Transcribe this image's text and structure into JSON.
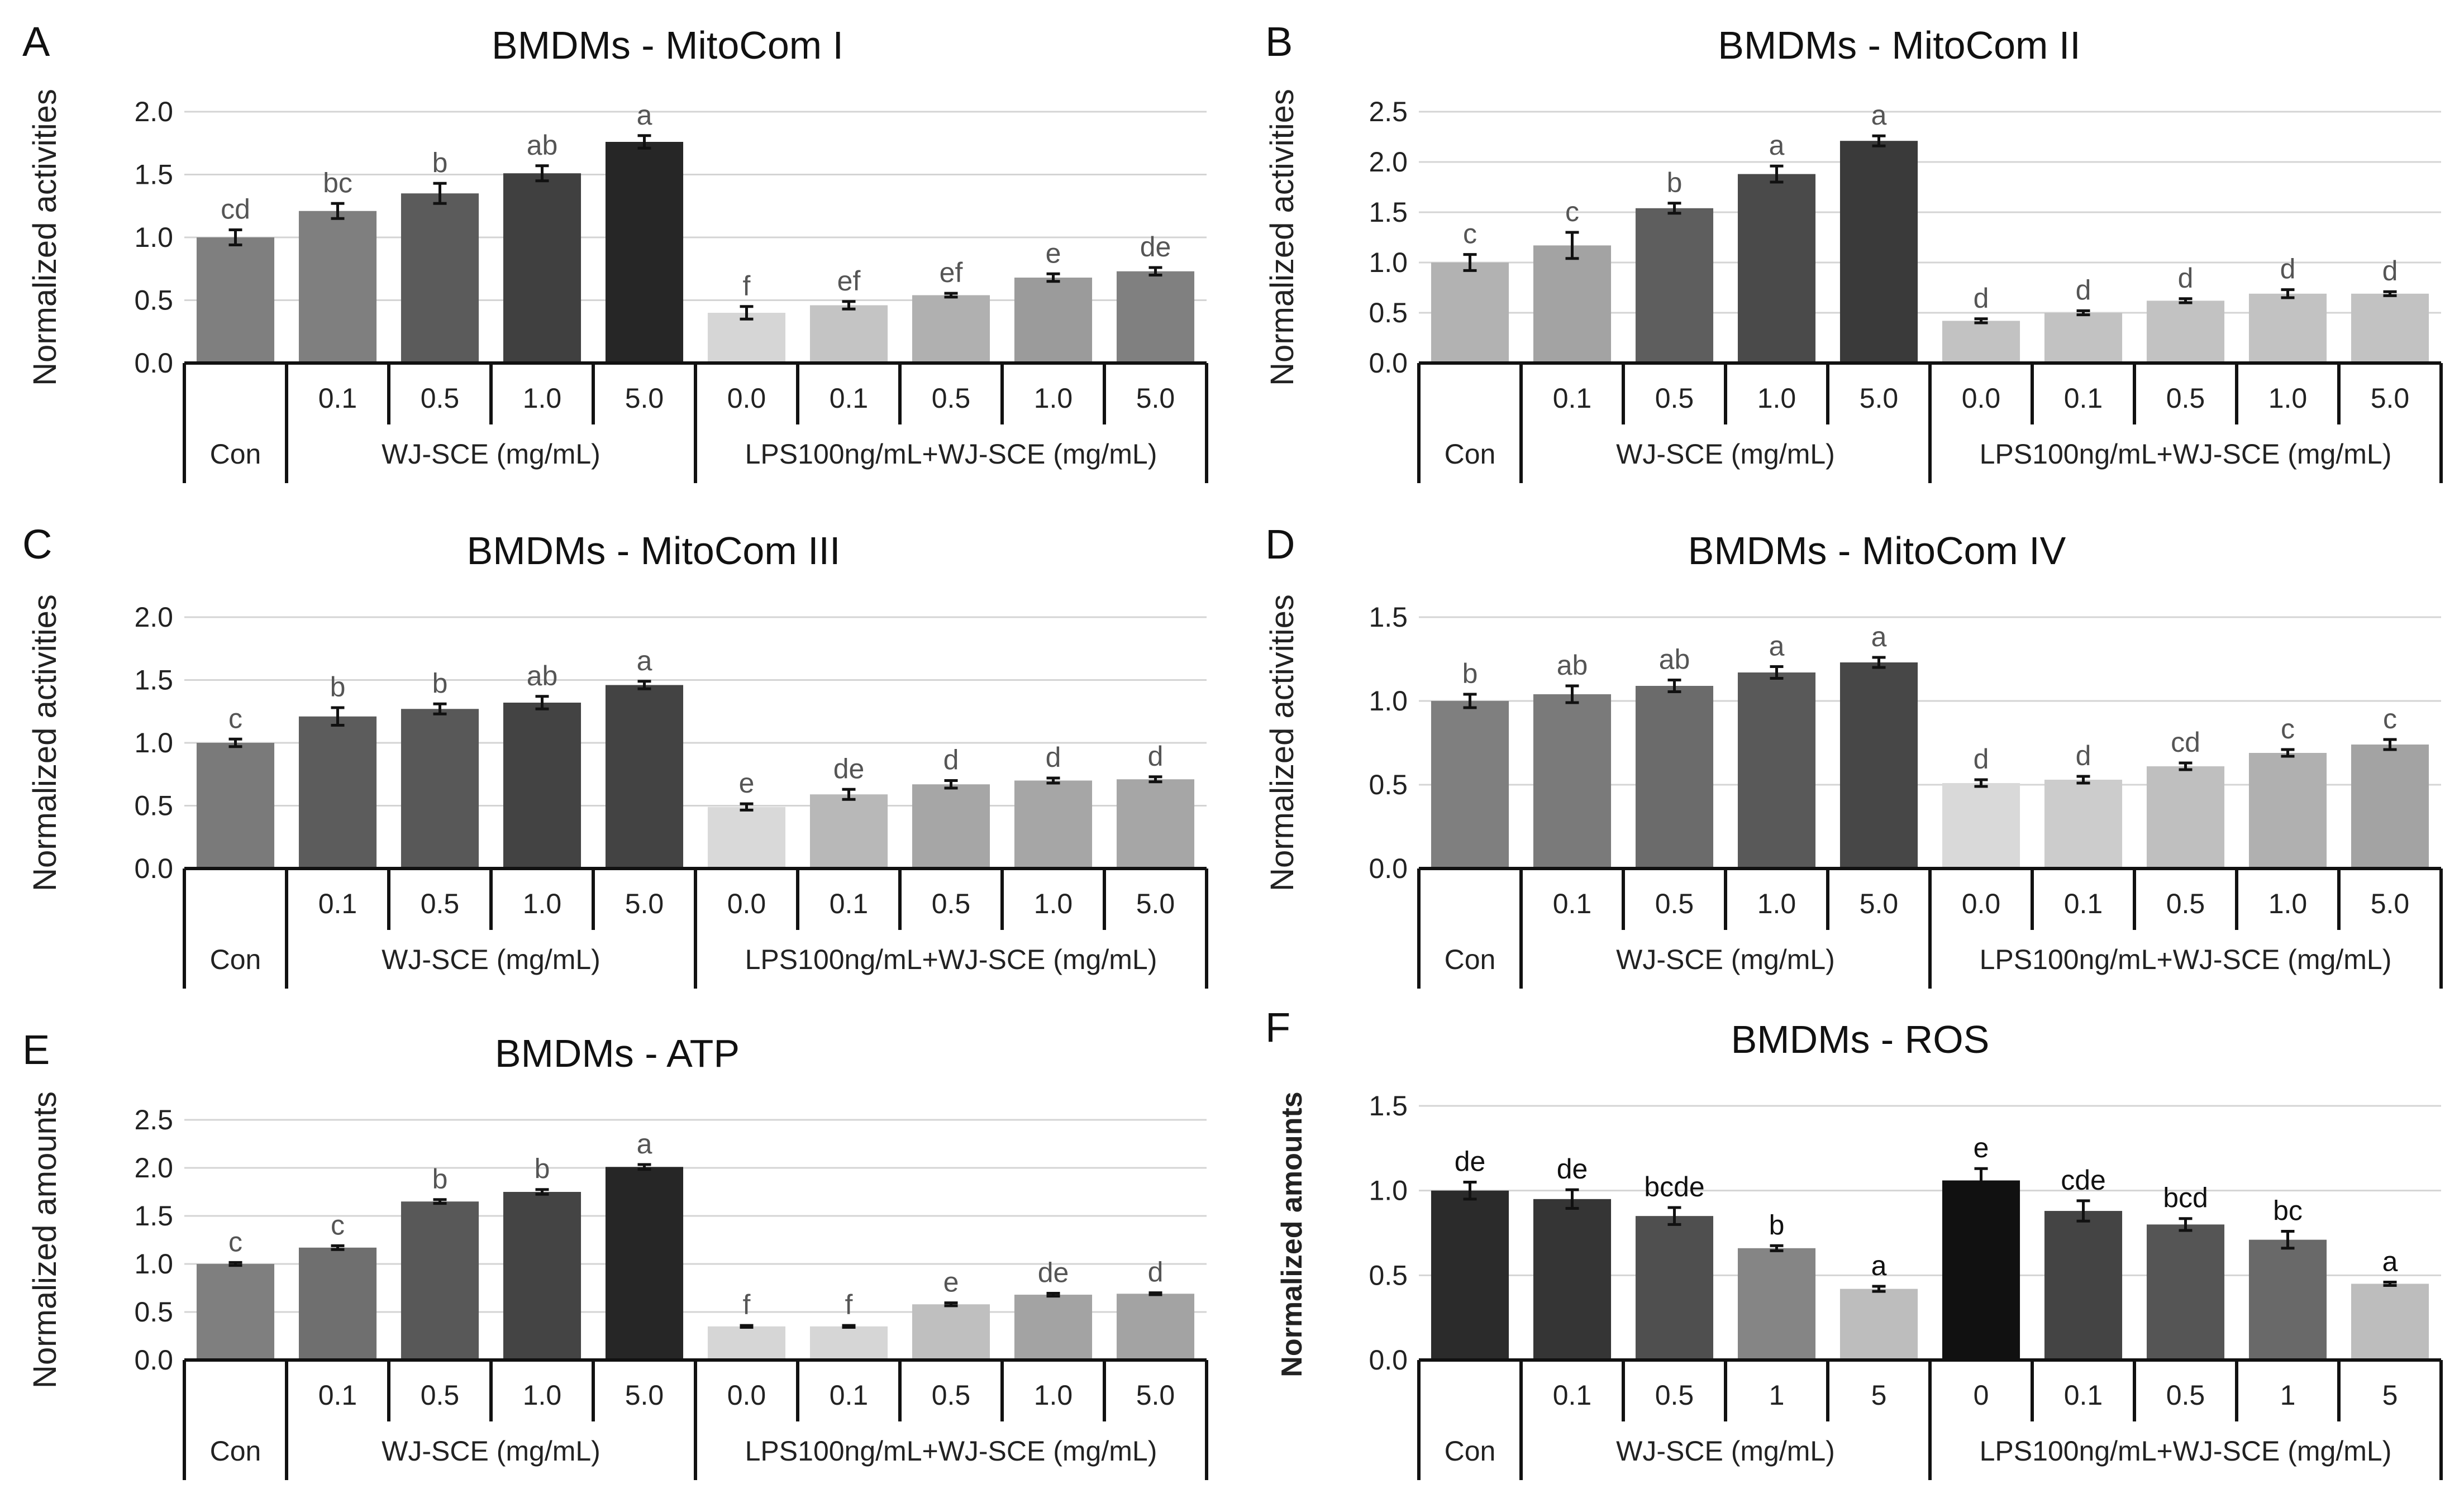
{
  "chart_data": [
    {
      "type": "bar",
      "panel": "A",
      "title": "BMDMs - MitoCom I",
      "ylabel": "Normalized activities",
      "xlabel": "",
      "ylim": [
        0,
        2.0
      ],
      "yticks": [
        "0.0",
        "0.5",
        "1.0",
        "1.5",
        "2.0"
      ],
      "categories": [
        "",
        "0.1",
        "0.5",
        "1.0",
        "5.0",
        "0.0",
        "0.1",
        "0.5",
        "1.0",
        "5.0"
      ],
      "groups": [
        "Con",
        "WJ-SCE (mg/mL)",
        "LPS100ng/mL+WJ-SCE (mg/mL)"
      ],
      "values": [
        1.0,
        1.21,
        1.35,
        1.51,
        1.76,
        0.4,
        0.46,
        0.54,
        0.68,
        0.73
      ],
      "errors": [
        0.06,
        0.06,
        0.08,
        0.06,
        0.05,
        0.05,
        0.03,
        0.015,
        0.03,
        0.03
      ],
      "sig_labels": [
        "cd",
        "bc",
        "b",
        "ab",
        "a",
        "f",
        "ef",
        "ef",
        "e",
        "de"
      ],
      "colors": [
        "#7f7f7f",
        "#7f7f7f",
        "#5b5b5b",
        "#404040",
        "#262626",
        "#d6d6d6",
        "#c4c4c4",
        "#b0b0b0",
        "#9b9b9b",
        "#808080"
      ]
    },
    {
      "type": "bar",
      "panel": "B",
      "title": "BMDMs - MitoCom II",
      "ylabel": "Normalized activities",
      "xlabel": "",
      "ylim": [
        0,
        2.5
      ],
      "yticks": [
        "0.0",
        "0.5",
        "1.0",
        "1.5",
        "2.0",
        "2.5"
      ],
      "categories": [
        "",
        "0.1",
        "0.5",
        "1.0",
        "5.0",
        "0.0",
        "0.1",
        "0.5",
        "1.0",
        "5.0"
      ],
      "groups": [
        "Con",
        "WJ-SCE (mg/mL)",
        "LPS100ng/mL+WJ-SCE (mg/mL)"
      ],
      "values": [
        1.0,
        1.17,
        1.54,
        1.88,
        2.21,
        0.42,
        0.5,
        0.62,
        0.69,
        0.69
      ],
      "errors": [
        0.08,
        0.13,
        0.05,
        0.08,
        0.05,
        0.02,
        0.02,
        0.02,
        0.04,
        0.02
      ],
      "sig_labels": [
        "c",
        "c",
        "b",
        "a",
        "a",
        "d",
        "d",
        "d",
        "d",
        "d"
      ],
      "colors": [
        "#b2b2b2",
        "#a3a3a3",
        "#5e5e5e",
        "#4a4a4a",
        "#3a3a3a",
        "#c2c2c2",
        "#c2c2c2",
        "#c2c2c2",
        "#c2c2c2",
        "#c2c2c2"
      ]
    },
    {
      "type": "bar",
      "panel": "C",
      "title": "BMDMs - MitoCom III",
      "ylabel": "Normalized activities",
      "xlabel": "",
      "ylim": [
        0,
        2.0
      ],
      "yticks": [
        "0.0",
        "0.5",
        "1.0",
        "1.5",
        "2.0"
      ],
      "categories": [
        "",
        "0.1",
        "0.5",
        "1.0",
        "5.0",
        "0.0",
        "0.1",
        "0.5",
        "1.0",
        "5.0"
      ],
      "groups": [
        "Con",
        "WJ-SCE (mg/mL)",
        "LPS100ng/mL+WJ-SCE (mg/mL)"
      ],
      "values": [
        1.0,
        1.21,
        1.27,
        1.32,
        1.46,
        0.49,
        0.59,
        0.67,
        0.7,
        0.71
      ],
      "errors": [
        0.03,
        0.07,
        0.04,
        0.05,
        0.03,
        0.025,
        0.04,
        0.03,
        0.02,
        0.02
      ],
      "sig_labels": [
        "c",
        "b",
        "b",
        "ab",
        "a",
        "e",
        "de",
        "d",
        "d",
        "d"
      ],
      "colors": [
        "#7a7a7a",
        "#5c5c5c",
        "#585858",
        "#434343",
        "#434343",
        "#d9d9d9",
        "#b8b8b8",
        "#a6a6a6",
        "#a6a6a6",
        "#a6a6a6"
      ]
    },
    {
      "type": "bar",
      "panel": "D",
      "title": "BMDMs - MitoCom IV",
      "ylabel": "Normalized activities",
      "xlabel": "",
      "ylim": [
        0,
        1.5
      ],
      "yticks": [
        "0.0",
        "0.5",
        "1.0",
        "1.5"
      ],
      "categories": [
        "",
        "0.1",
        "0.5",
        "1.0",
        "5.0",
        "0.0",
        "0.1",
        "0.5",
        "1.0",
        "5.0"
      ],
      "groups": [
        "Con",
        "WJ-SCE (mg/mL)",
        "LPS100ng/mL+WJ-SCE (mg/mL)"
      ],
      "values": [
        1.0,
        1.04,
        1.09,
        1.17,
        1.23,
        0.51,
        0.53,
        0.61,
        0.69,
        0.74
      ],
      "errors": [
        0.04,
        0.05,
        0.035,
        0.035,
        0.03,
        0.02,
        0.02,
        0.02,
        0.02,
        0.03
      ],
      "sig_labels": [
        "b",
        "ab",
        "ab",
        "a",
        "a",
        "d",
        "d",
        "cd",
        "c",
        "c"
      ],
      "colors": [
        "#7f7f7f",
        "#7a7a7a",
        "#6b6b6b",
        "#595959",
        "#474747",
        "#d9d9d9",
        "#cccccc",
        "#bfbfbf",
        "#b0b0b0",
        "#a3a3a3"
      ]
    },
    {
      "type": "bar",
      "panel": "E",
      "title": "BMDMs - ATP",
      "ylabel": "Normalized amounts",
      "xlabel": "",
      "ylim": [
        0,
        2.5
      ],
      "yticks": [
        "0.0",
        "0.5",
        "1.0",
        "1.5",
        "2.0",
        "2.5"
      ],
      "categories": [
        "",
        "0.1",
        "0.5",
        "1.0",
        "5.0",
        "0.0",
        "0.1",
        "0.5",
        "1.0",
        "5.0"
      ],
      "groups": [
        "Con",
        "WJ-SCE (mg/mL)",
        "LPS100ng/mL+WJ-SCE (mg/mL)"
      ],
      "values": [
        1.0,
        1.17,
        1.65,
        1.75,
        2.01,
        0.35,
        0.35,
        0.58,
        0.68,
        0.69
      ],
      "errors": [
        0.015,
        0.02,
        0.02,
        0.025,
        0.025,
        0.01,
        0.01,
        0.015,
        0.015,
        0.01
      ],
      "sig_labels": [
        "c",
        "c",
        "b",
        "b",
        "a",
        "f",
        "f",
        "e",
        "de",
        "d"
      ],
      "colors": [
        "#7f7f7f",
        "#6f6f6f",
        "#585858",
        "#444444",
        "#262626",
        "#d6d6d6",
        "#d6d6d6",
        "#bfbfbf",
        "#a3a3a3",
        "#a3a3a3"
      ]
    },
    {
      "type": "bar",
      "panel": "F",
      "title": "BMDMs - ROS",
      "ylabel": "Normalized amounts",
      "xlabel": "",
      "ylim": [
        0,
        1.5
      ],
      "yticks": [
        "0.0",
        "0.5",
        "1.0",
        "1.5"
      ],
      "categories": [
        "",
        "0.1",
        "0.5",
        "1",
        "5",
        "0",
        "0.1",
        "0.5",
        "1",
        "5"
      ],
      "groups": [
        "Con",
        "WJ-SCE (mg/mL)",
        "LPS100ng/mL+WJ-SCE (mg/mL)"
      ],
      "values": [
        1.0,
        0.95,
        0.85,
        0.66,
        0.42,
        1.06,
        0.88,
        0.8,
        0.71,
        0.45
      ],
      "errors": [
        0.05,
        0.055,
        0.05,
        0.015,
        0.015,
        0.07,
        0.06,
        0.035,
        0.05,
        0.01
      ],
      "sig_labels": [
        "de",
        "de",
        "bcde",
        "b",
        "a",
        "e",
        "cde",
        "bcd",
        "bc",
        "a"
      ],
      "colors": [
        "#2b2b2b",
        "#353535",
        "#4f4f4f",
        "#858585",
        "#bdbdbd",
        "#111111",
        "#444444",
        "#555555",
        "#696969",
        "#bdbdbd"
      ]
    }
  ]
}
